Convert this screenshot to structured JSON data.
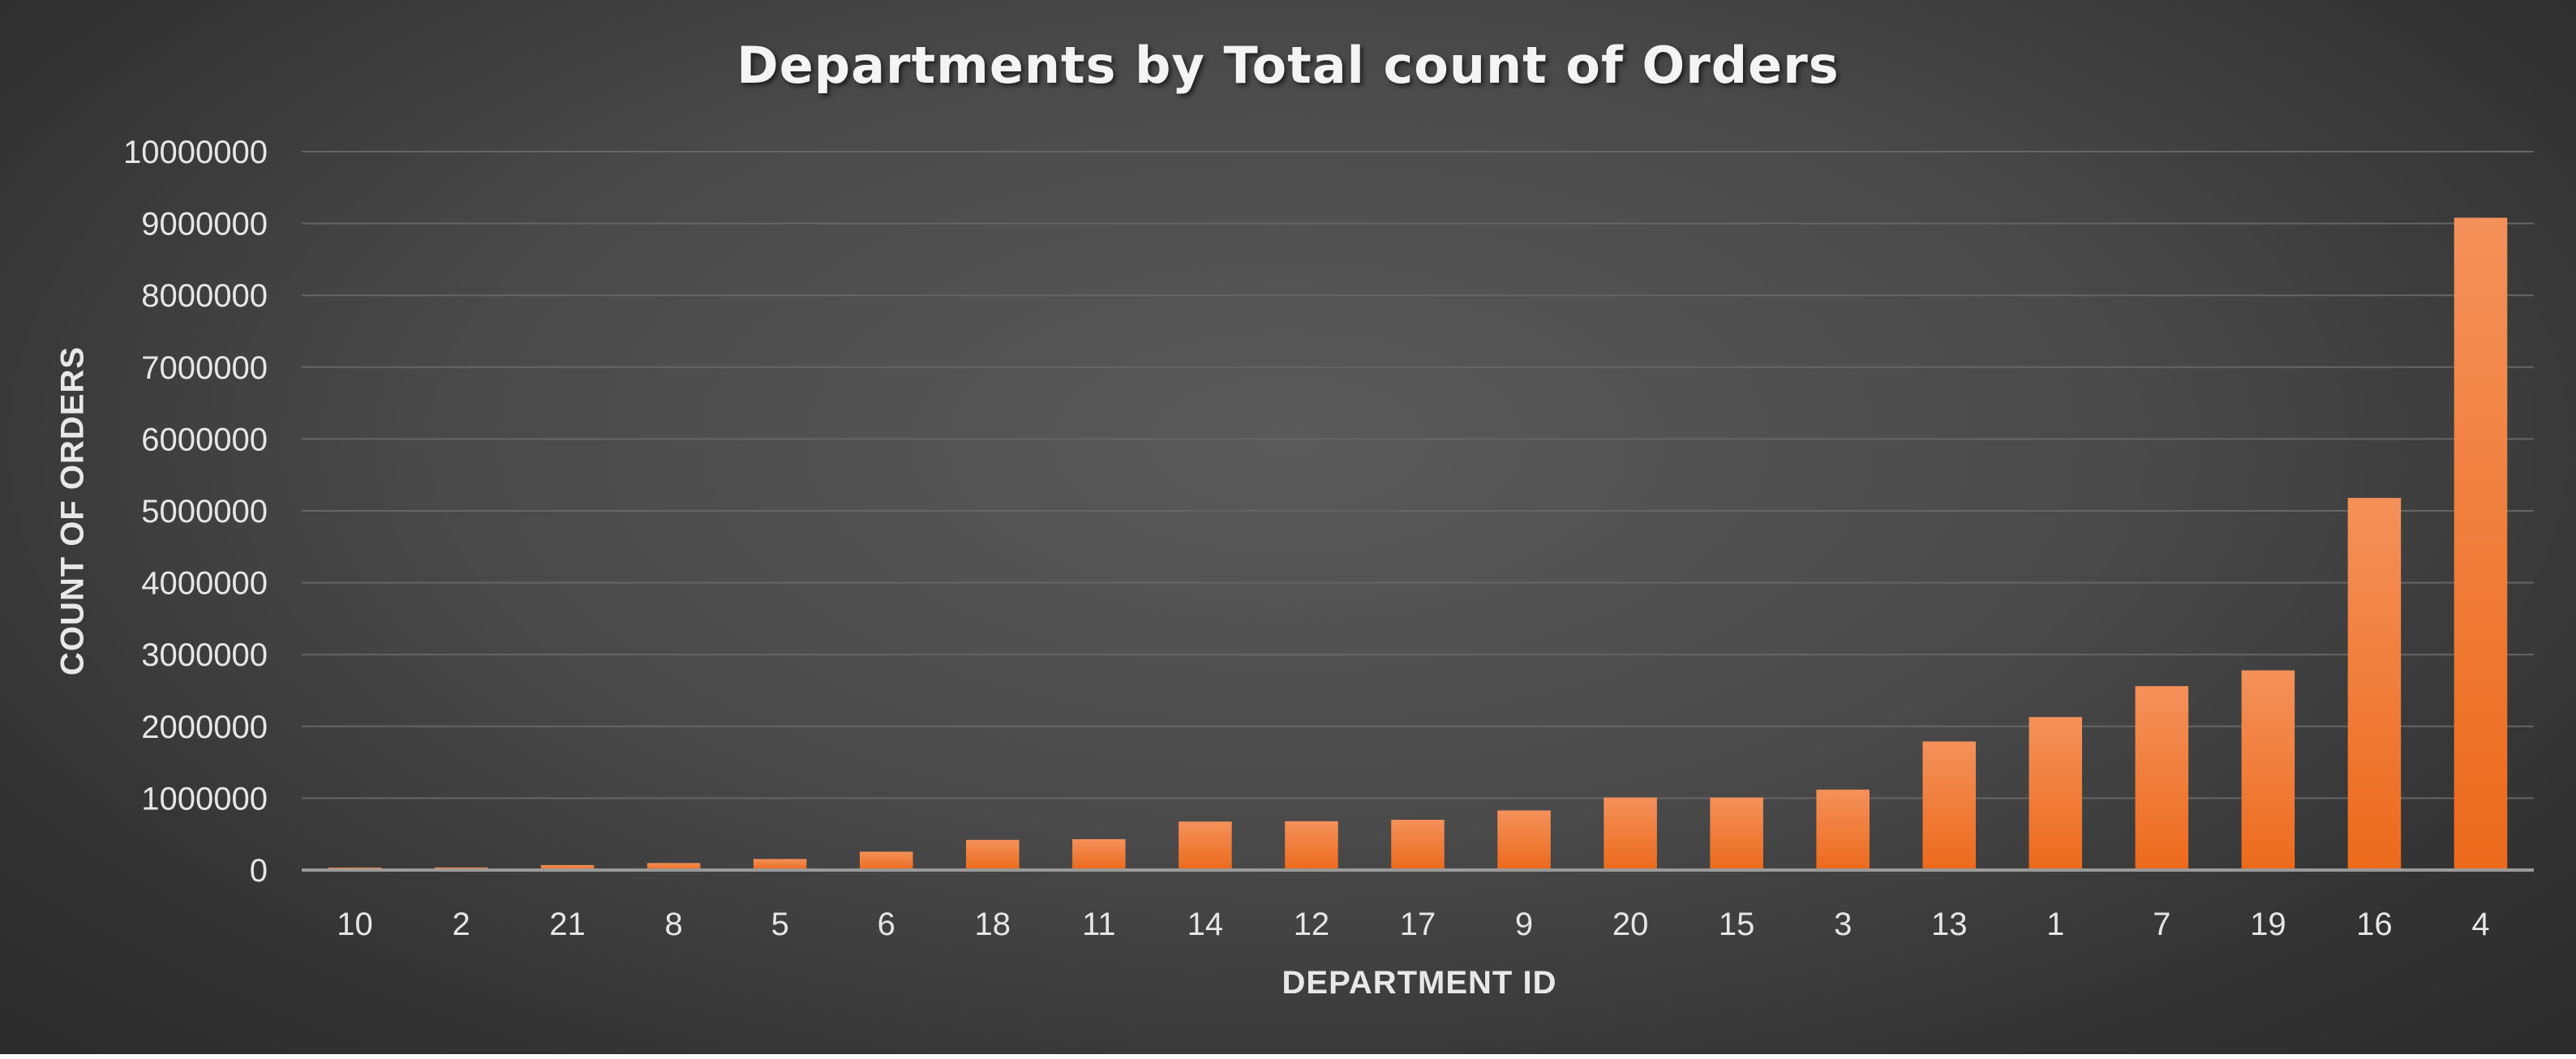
{
  "chart_data": {
    "type": "bar",
    "title": "Departments by Total count of Orders",
    "xlabel": "DEPARTMENT ID",
    "ylabel": "COUNT OF ORDERS",
    "categories": [
      "10",
      "2",
      "21",
      "8",
      "5",
      "6",
      "18",
      "11",
      "14",
      "12",
      "17",
      "9",
      "20",
      "15",
      "3",
      "13",
      "1",
      "7",
      "19",
      "16",
      "4"
    ],
    "values": [
      34573,
      36291,
      69145,
      97716,
      153696,
      255991,
      420000,
      430000,
      675000,
      680000,
      700000,
      830000,
      1010000,
      1010000,
      1120000,
      1790000,
      2130000,
      2560000,
      2780000,
      5180000,
      9080000
    ],
    "ylim": [
      0,
      10000000
    ],
    "yticks": [
      "0",
      "1000000",
      "2000000",
      "3000000",
      "4000000",
      "5000000",
      "6000000",
      "7000000",
      "8000000",
      "9000000",
      "10000000"
    ],
    "grid": true,
    "legend": "none",
    "bar_color_top": "#f4915a",
    "bar_color_bottom": "#ec6a1c",
    "background_color": "#4a4a4a",
    "gridline_color": "#666666",
    "text_color": "#e6e6e6"
  }
}
